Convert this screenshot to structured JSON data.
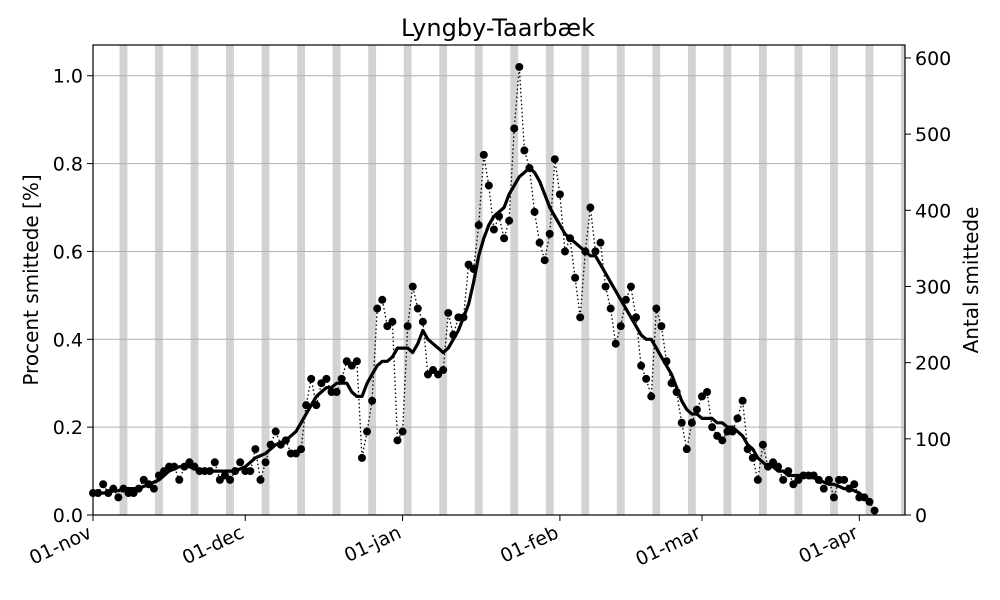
{
  "chart_data": {
    "type": "line",
    "title": "Lyngby-Taarbæk",
    "ylabel_left": "Procent smittede [%]",
    "ylabel_right": "Antal smittede",
    "x_start": "2020-11-01",
    "x_end": "2021-04-10",
    "ylim_left": [
      0,
      1.07
    ],
    "ylim_right": [
      0,
      617
    ],
    "left_ticks": [
      "0.0",
      "0.2",
      "0.4",
      "0.6",
      "0.8",
      "1.0"
    ],
    "right_ticks": [
      "0",
      "100",
      "200",
      "300",
      "400",
      "500",
      "600"
    ],
    "x_ticks": [
      {
        "label": "01-nov",
        "date": "2020-11-01"
      },
      {
        "label": "01-dec",
        "date": "2020-12-01"
      },
      {
        "label": "01-jan",
        "date": "2021-01-01"
      },
      {
        "label": "01-feb",
        "date": "2021-02-01"
      },
      {
        "label": "01-mar",
        "date": "2021-03-01"
      },
      {
        "label": "01-apr",
        "date": "2021-04-01"
      }
    ],
    "weekend_bands": [
      "2020-11-07",
      "2020-11-14",
      "2020-11-21",
      "2020-11-28",
      "2020-12-05",
      "2020-12-12",
      "2020-12-19",
      "2020-12-26",
      "2021-01-02",
      "2021-01-09",
      "2021-01-16",
      "2021-01-23",
      "2021-01-30",
      "2021-02-06",
      "2021-02-13",
      "2021-02-20",
      "2021-02-27",
      "2021-03-06",
      "2021-03-13",
      "2021-03-20",
      "2021-03-27",
      "2021-04-03",
      "2021-04-10"
    ],
    "grid": true,
    "colors": {
      "weekend": "#d3d3d3",
      "series": "#000000",
      "grid": "#b0b0b0"
    },
    "series": [
      {
        "style": "dotted-markers",
        "start_date": "2020-11-01",
        "values": [
          0.05,
          0.05,
          0.07,
          0.05,
          0.06,
          0.04,
          0.06,
          0.05,
          0.05,
          0.06,
          0.08,
          0.07,
          0.06,
          0.09,
          0.1,
          0.11,
          0.11,
          0.08,
          0.11,
          0.12,
          0.11,
          0.1,
          0.1,
          0.1,
          0.12,
          0.08,
          0.09,
          0.08,
          0.1,
          0.12,
          0.1,
          0.1,
          0.15,
          0.08,
          0.12,
          0.16,
          0.19,
          0.16,
          0.17,
          0.14,
          0.14,
          0.15,
          0.25,
          0.31,
          0.25,
          0.3,
          0.31,
          0.28,
          0.28,
          0.31,
          0.35,
          0.34,
          0.35,
          0.13,
          0.19,
          0.26,
          0.47,
          0.49,
          0.43,
          0.44,
          0.17,
          0.19,
          0.43,
          0.52,
          0.47,
          0.44,
          0.32,
          0.33,
          0.32,
          0.33,
          0.46,
          0.41,
          0.45,
          0.45,
          0.57,
          0.56,
          0.66,
          0.82,
          0.75,
          0.65,
          0.68,
          0.63,
          0.67,
          0.88,
          1.02,
          0.83,
          0.79,
          0.69,
          0.62,
          0.58,
          0.64,
          0.81,
          0.73,
          0.6,
          0.63,
          0.54,
          0.45,
          0.6,
          0.7,
          0.6,
          0.62,
          0.52,
          0.47,
          0.39,
          0.43,
          0.49,
          0.52,
          0.45,
          0.34,
          0.31,
          0.27,
          0.47,
          0.43,
          0.35,
          0.3,
          0.28,
          0.21,
          0.15,
          0.21,
          0.24,
          0.27,
          0.28,
          0.2,
          0.18,
          0.17,
          0.19,
          0.19,
          0.22,
          0.26,
          0.15,
          0.13,
          0.08,
          0.16,
          0.11,
          0.12,
          0.11,
          0.08,
          0.1,
          0.07,
          0.08,
          0.09,
          0.09,
          0.09,
          0.08,
          0.06,
          0.08,
          0.04,
          0.08,
          0.08,
          0.06,
          0.07,
          0.04,
          0.04,
          0.03,
          0.01
        ]
      },
      {
        "style": "solid-smooth",
        "start_date": "2020-11-01",
        "values": [
          0.05,
          0.05,
          0.05,
          0.05,
          0.055,
          0.055,
          0.06,
          0.06,
          0.06,
          0.06,
          0.065,
          0.07,
          0.075,
          0.08,
          0.09,
          0.1,
          0.105,
          0.11,
          0.11,
          0.11,
          0.105,
          0.1,
          0.1,
          0.1,
          0.1,
          0.1,
          0.1,
          0.1,
          0.1,
          0.105,
          0.11,
          0.12,
          0.13,
          0.135,
          0.14,
          0.15,
          0.16,
          0.165,
          0.17,
          0.18,
          0.19,
          0.21,
          0.23,
          0.25,
          0.27,
          0.28,
          0.29,
          0.29,
          0.3,
          0.3,
          0.3,
          0.28,
          0.27,
          0.27,
          0.3,
          0.32,
          0.34,
          0.35,
          0.35,
          0.36,
          0.38,
          0.38,
          0.38,
          0.37,
          0.39,
          0.42,
          0.4,
          0.39,
          0.38,
          0.37,
          0.38,
          0.4,
          0.42,
          0.45,
          0.48,
          0.53,
          0.59,
          0.63,
          0.66,
          0.68,
          0.69,
          0.7,
          0.73,
          0.75,
          0.77,
          0.78,
          0.79,
          0.78,
          0.76,
          0.73,
          0.7,
          0.68,
          0.66,
          0.64,
          0.63,
          0.62,
          0.61,
          0.6,
          0.59,
          0.59,
          0.57,
          0.55,
          0.53,
          0.51,
          0.49,
          0.47,
          0.45,
          0.43,
          0.41,
          0.4,
          0.4,
          0.38,
          0.36,
          0.34,
          0.32,
          0.29,
          0.26,
          0.24,
          0.23,
          0.23,
          0.22,
          0.22,
          0.22,
          0.21,
          0.21,
          0.2,
          0.2,
          0.19,
          0.18,
          0.16,
          0.15,
          0.13,
          0.12,
          0.11,
          0.11,
          0.1,
          0.1,
          0.09,
          0.09,
          0.09,
          0.09,
          0.085,
          0.085,
          0.08,
          0.075,
          0.07,
          0.07,
          0.065,
          0.06,
          0.06,
          0.055,
          0.05,
          0.04
        ]
      }
    ]
  }
}
